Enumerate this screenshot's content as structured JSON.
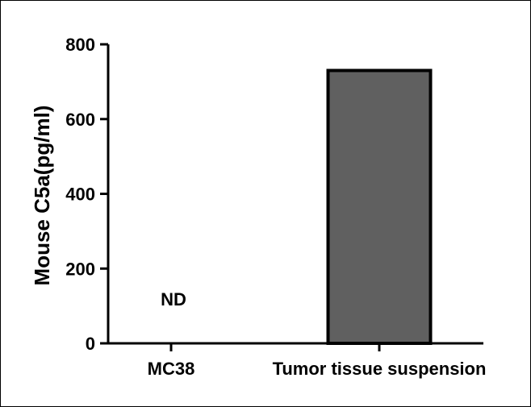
{
  "chart_data": {
    "type": "bar",
    "categories": [
      "MC38",
      "Tumor tissue suspension"
    ],
    "values": [
      0,
      730
    ],
    "annotations": [
      "ND",
      ""
    ],
    "title": "",
    "xlabel": "",
    "ylabel": "Mouse C5a(pg/ml)",
    "ylim": [
      0,
      800
    ],
    "yticks": [
      0,
      200,
      400,
      600,
      800
    ],
    "bar_color": "#606060",
    "bar_edge_color": "#000000",
    "grid": false,
    "legend": "none"
  }
}
